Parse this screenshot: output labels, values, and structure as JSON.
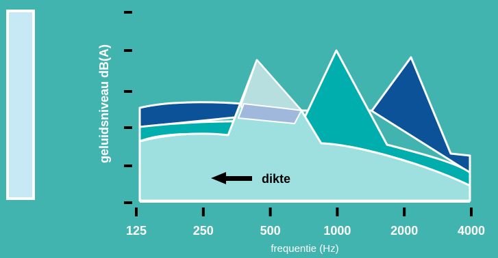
{
  "chart_data": {
    "type": "area",
    "ylabel": "geluidsniveau dB(A)",
    "xlabel": "frequentie (Hz)",
    "x_ticks": [
      "125",
      "250",
      "500",
      "1000",
      "2000",
      "4000"
    ],
    "annotation": "dikte",
    "annotation_direction": "left",
    "grid": false,
    "legend": "left",
    "ylim": [
      0,
      100
    ],
    "series": [
      {
        "layer": "back",
        "color": "#0B5299",
        "points": [
          [
            125,
            57
          ],
          [
            250,
            60
          ],
          [
            400,
            56
          ],
          [
            600,
            52
          ],
          [
            1000,
            48
          ],
          [
            1400,
            52
          ],
          [
            2000,
            87
          ],
          [
            3000,
            28
          ],
          [
            4000,
            26
          ]
        ]
      },
      {
        "layer": "middle",
        "color": "#00AEAE",
        "points": [
          [
            125,
            45
          ],
          [
            250,
            47
          ],
          [
            400,
            45
          ],
          [
            600,
            51
          ],
          [
            1000,
            93
          ],
          [
            1400,
            34
          ],
          [
            2000,
            29
          ],
          [
            3000,
            18
          ],
          [
            4000,
            11
          ]
        ]
      },
      {
        "layer": "front",
        "color": "#9EE0DF",
        "points": [
          [
            125,
            36
          ],
          [
            250,
            39
          ],
          [
            300,
            38
          ],
          [
            500,
            82
          ],
          [
            700,
            49
          ],
          [
            1000,
            38
          ],
          [
            2000,
            25
          ],
          [
            3000,
            10
          ],
          [
            4000,
            1
          ]
        ]
      }
    ]
  },
  "colors": {
    "background": "#42B4AF",
    "legend_fill": "#C6E9F5",
    "overlap_light": "#B8DFDF",
    "overlap_blue": "#A0B8DC",
    "text": "#ffffff"
  }
}
